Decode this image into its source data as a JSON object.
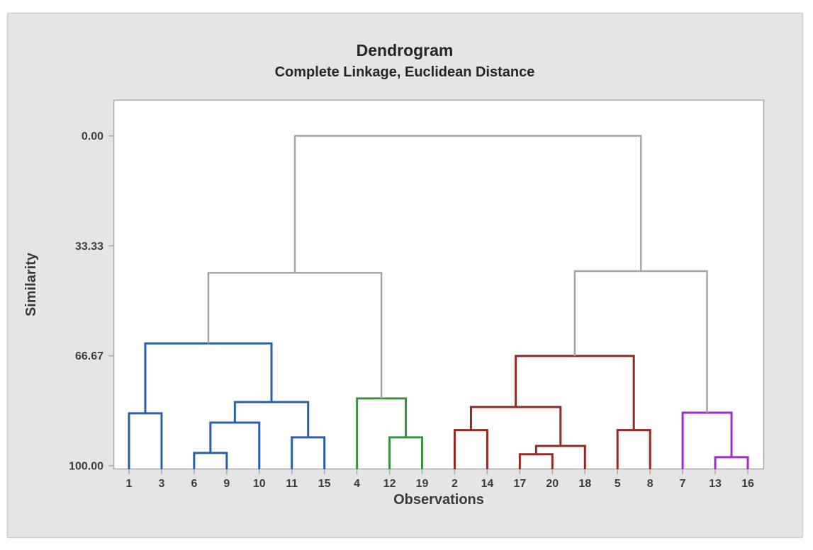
{
  "chart_data": {
    "type": "dendrogram",
    "title": "Dendrogram",
    "subtitle": "Complete Linkage, Euclidean Distance",
    "xlabel": "Observations",
    "ylabel": "Similarity",
    "y_axis": {
      "tick_labels": [
        "0.00",
        "33.33",
        "66.67",
        "100.00"
      ],
      "tick_values": [
        0,
        33.33,
        66.67,
        100
      ],
      "min": 0,
      "max": 100,
      "direction": "inverted (0 at top, 100 at bottom)"
    },
    "leaves": [
      "1",
      "3",
      "6",
      "9",
      "10",
      "11",
      "15",
      "4",
      "12",
      "19",
      "2",
      "14",
      "17",
      "20",
      "18",
      "5",
      "8",
      "7",
      "13",
      "16"
    ],
    "colors": {
      "blue": "#2b5fa5",
      "green": "#3a9043",
      "red": "#8e2b26",
      "purple": "#992dc9",
      "gray": "#a5a5a5"
    },
    "merges": [
      {
        "id": "M0",
        "a": "L2",
        "b": "L3",
        "sim": 96.1,
        "color": "blue",
        "note": "6+9"
      },
      {
        "id": "M1",
        "a": "M0",
        "b": "L4",
        "sim": 86.9,
        "color": "blue",
        "note": "(6,9)+10"
      },
      {
        "id": "M2",
        "a": "L5",
        "b": "L6",
        "sim": 91.4,
        "color": "blue",
        "note": "11+15"
      },
      {
        "id": "M3",
        "a": "M1",
        "b": "M2",
        "sim": 80.7,
        "color": "blue",
        "note": "(6,9,10)+(11,15)"
      },
      {
        "id": "M4",
        "a": "L0",
        "b": "L1",
        "sim": 84.1,
        "color": "blue",
        "note": "1+3"
      },
      {
        "id": "M5",
        "a": "M4",
        "b": "M3",
        "sim": 62.9,
        "color": "blue",
        "note": "blue cluster top"
      },
      {
        "id": "M6",
        "a": "L8",
        "b": "L9",
        "sim": 91.4,
        "color": "green",
        "note": "12+19"
      },
      {
        "id": "M7",
        "a": "L7",
        "b": "M6",
        "sim": 79.6,
        "color": "green",
        "note": "green cluster top: 4+(12,19)"
      },
      {
        "id": "M8",
        "a": "L12",
        "b": "L13",
        "sim": 96.5,
        "color": "red",
        "note": "17+20"
      },
      {
        "id": "M9",
        "a": "M8",
        "b": "L14",
        "sim": 94.0,
        "color": "red",
        "note": "(17,20)+18"
      },
      {
        "id": "M10",
        "a": "L10",
        "b": "L11",
        "sim": 89.2,
        "color": "red",
        "note": "2+14"
      },
      {
        "id": "M11",
        "a": "M10",
        "b": "M9",
        "sim": 82.2,
        "color": "red",
        "note": "(2,14)+(17,20,18)"
      },
      {
        "id": "M12",
        "a": "L15",
        "b": "L16",
        "sim": 89.2,
        "color": "red",
        "note": "5+8"
      },
      {
        "id": "M13",
        "a": "M11",
        "b": "M12",
        "sim": 66.7,
        "color": "red",
        "note": "red cluster top"
      },
      {
        "id": "M14",
        "a": "L18",
        "b": "L19",
        "sim": 97.4,
        "color": "purple",
        "note": "13+16"
      },
      {
        "id": "M15",
        "a": "L17",
        "b": "M14",
        "sim": 83.9,
        "color": "purple",
        "note": "purple cluster top: 7+(13,16)"
      },
      {
        "id": "M16",
        "a": "M5",
        "b": "M7",
        "sim": 41.5,
        "color": "gray",
        "note": "blue+green"
      },
      {
        "id": "M17",
        "a": "M13",
        "b": "M15",
        "sim": 41.0,
        "color": "gray",
        "note": "red+purple"
      },
      {
        "id": "M18",
        "a": "M16",
        "b": "M17",
        "sim": 0.0,
        "color": "gray",
        "note": "root"
      }
    ]
  }
}
